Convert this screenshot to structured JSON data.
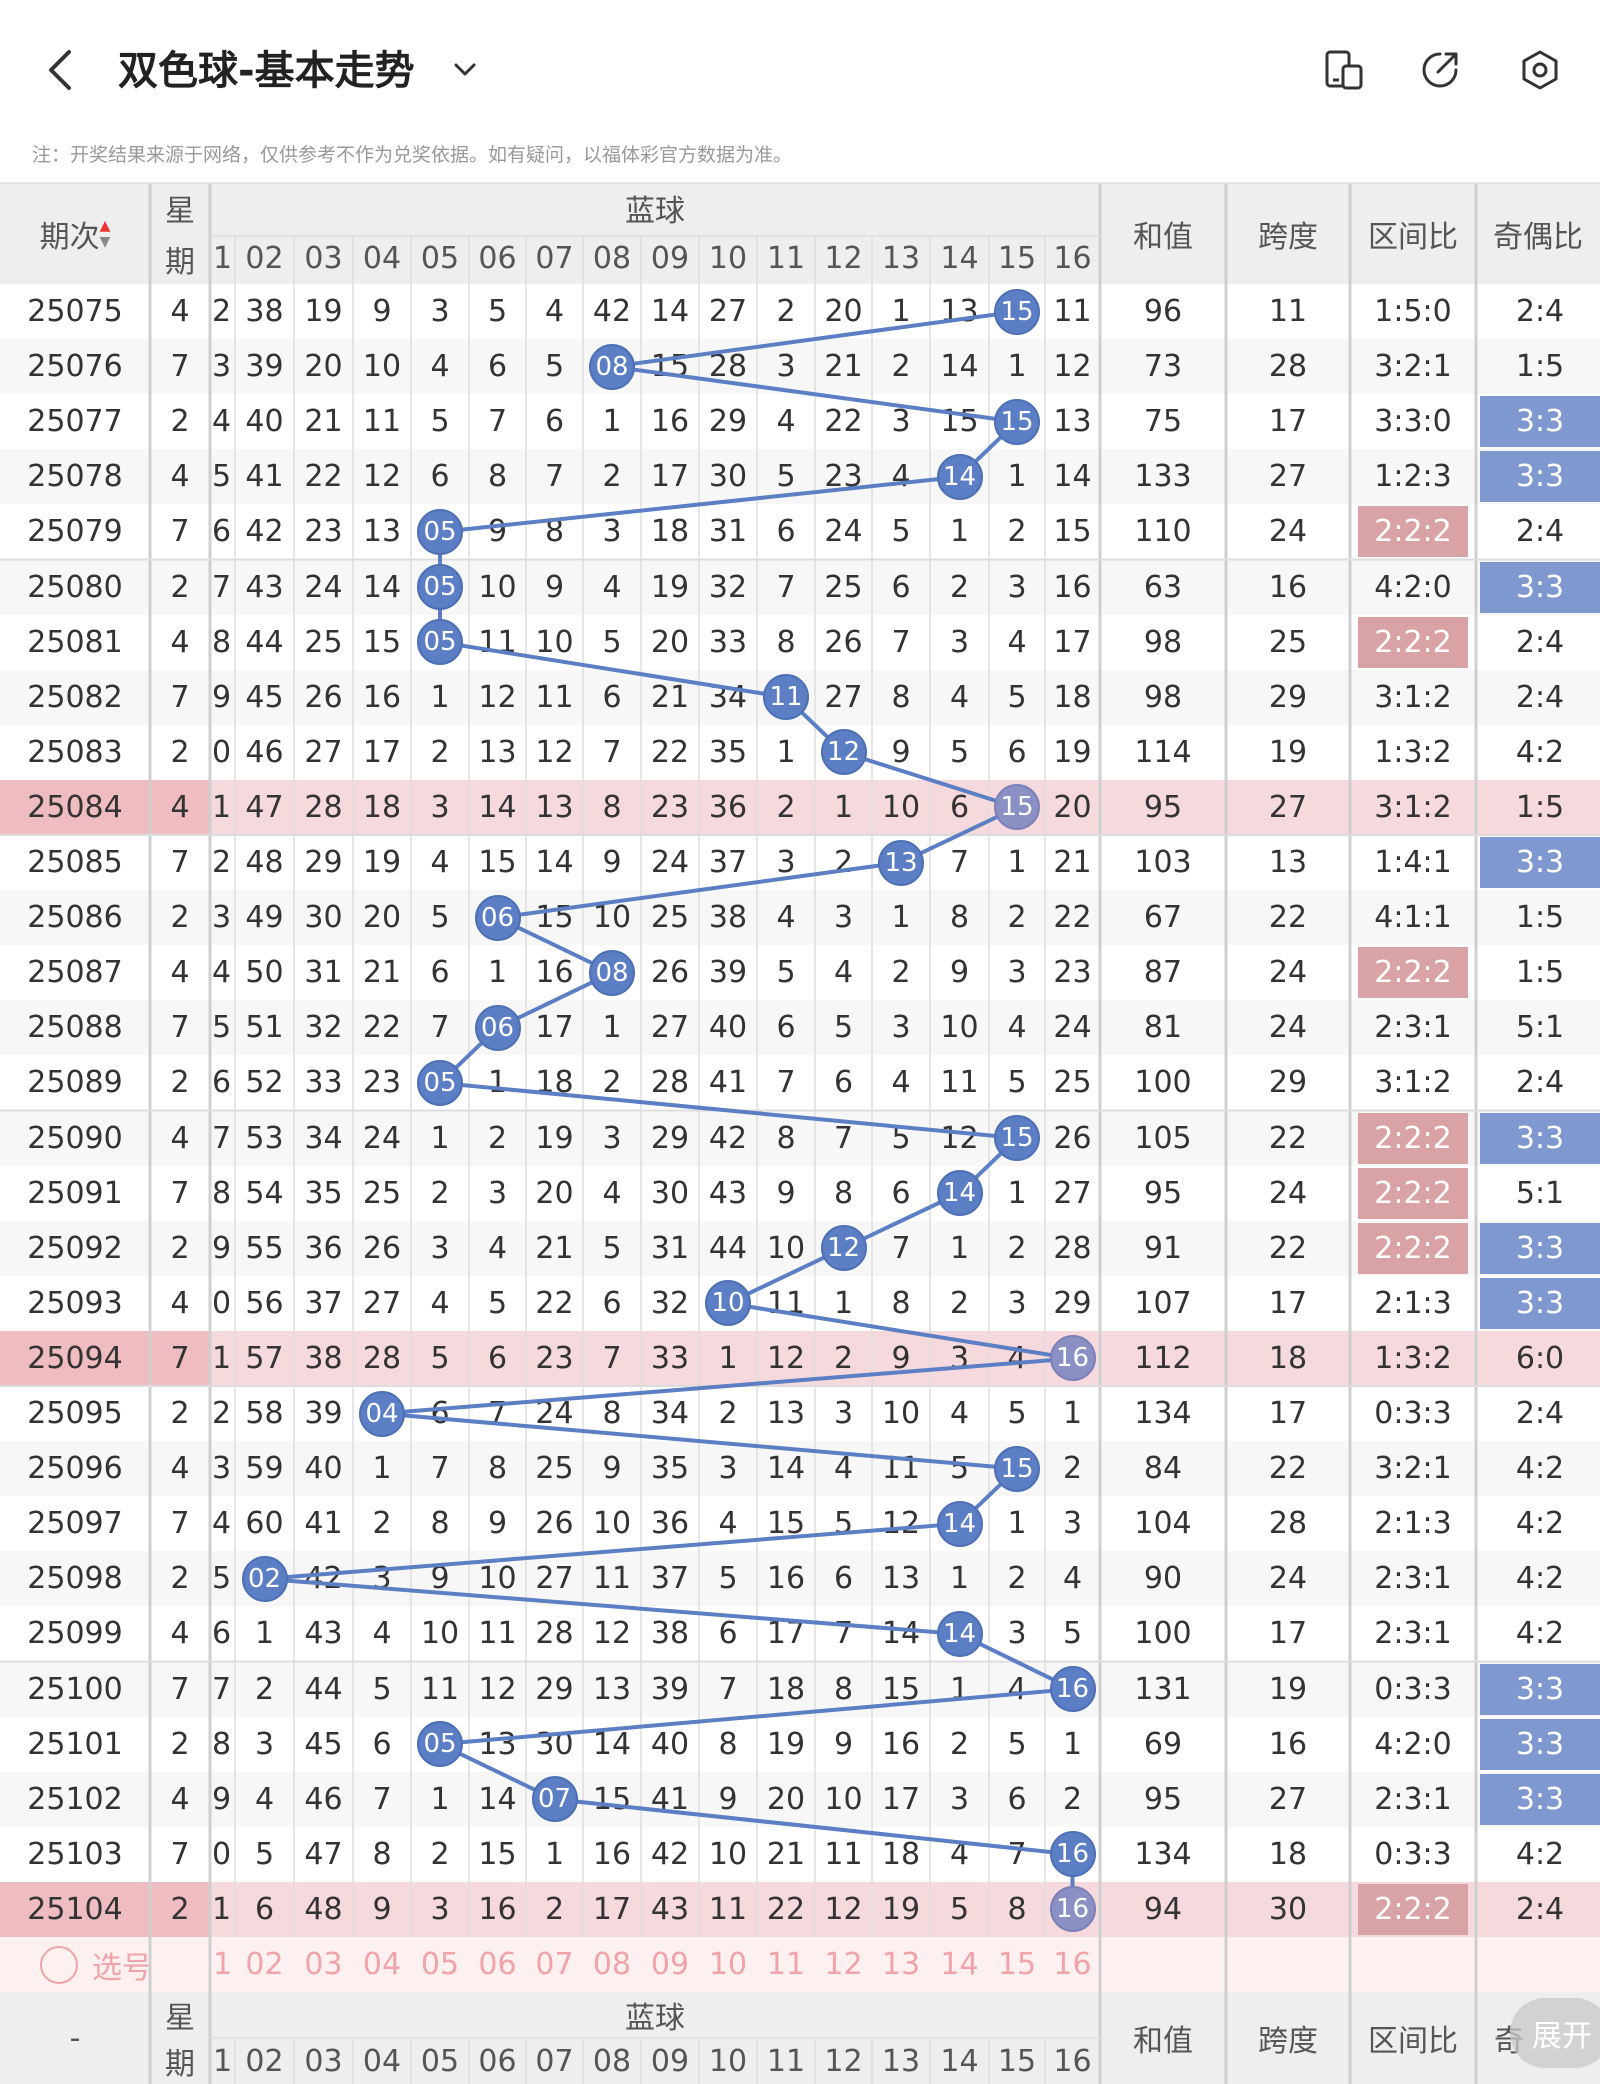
{
  "header": {
    "back_icon": "chevron-left-icon",
    "title": "双色球-基本走势",
    "title_dropdown_icon": "chevron-down-icon",
    "action_icons": [
      "mobile-layout-icon",
      "share-icon",
      "settings-icon"
    ]
  },
  "notice": "注：开奖结果来源于网络，仅供参考不作为兑奖依据。如有疑问，以福体彩官方数据为准。",
  "table": {
    "headers": {
      "period": "期次",
      "weekday_top": "星",
      "weekday_bottom": "期",
      "blue_ball": "蓝球",
      "sum": "和值",
      "span": "跨度",
      "zone_ratio": "区间比",
      "odd_even_ratio": "奇偶比"
    },
    "blue_columns": [
      "1",
      "02",
      "03",
      "04",
      "05",
      "06",
      "07",
      "08",
      "09",
      "10",
      "11",
      "12",
      "13",
      "14",
      "15",
      "16"
    ],
    "rows": [
      {
        "period": "25075",
        "weekday": "4",
        "blue": 15,
        "sum": "96",
        "span": "11",
        "zone": "1:5:0",
        "oe": "2:4",
        "cells": [
          "2",
          "38",
          "19",
          "9",
          "3",
          "5",
          "4",
          "42",
          "14",
          "27",
          "2",
          "20",
          "1",
          "13",
          "15",
          "11"
        ]
      },
      {
        "period": "25076",
        "weekday": "7",
        "blue": 8,
        "sum": "73",
        "span": "28",
        "zone": "3:2:1",
        "oe": "1:5",
        "cells": [
          "3",
          "39",
          "20",
          "10",
          "4",
          "6",
          "5",
          "08",
          "15",
          "28",
          "3",
          "21",
          "2",
          "14",
          "1",
          "12"
        ]
      },
      {
        "period": "25077",
        "weekday": "2",
        "blue": 15,
        "sum": "75",
        "span": "17",
        "zone": "3:3:0",
        "oe": "3:3",
        "oe_hl": true,
        "cells": [
          "4",
          "40",
          "21",
          "11",
          "5",
          "7",
          "6",
          "1",
          "16",
          "29",
          "4",
          "22",
          "3",
          "15",
          "15",
          "13"
        ]
      },
      {
        "period": "25078",
        "weekday": "4",
        "blue": 14,
        "sum": "133",
        "span": "27",
        "zone": "1:2:3",
        "oe": "3:3",
        "oe_hl": true,
        "cells": [
          "5",
          "41",
          "22",
          "12",
          "6",
          "8",
          "7",
          "2",
          "17",
          "30",
          "5",
          "23",
          "4",
          "14",
          "1",
          "14"
        ]
      },
      {
        "period": "25079",
        "weekday": "7",
        "blue": 5,
        "sum": "110",
        "span": "24",
        "zone": "2:2:2",
        "zone_hl": true,
        "oe": "2:4",
        "cells": [
          "6",
          "42",
          "23",
          "13",
          "05",
          "9",
          "8",
          "3",
          "18",
          "31",
          "6",
          "24",
          "5",
          "1",
          "2",
          "15"
        ]
      },
      {
        "period": "25080",
        "weekday": "2",
        "blue": 5,
        "sum": "63",
        "span": "16",
        "zone": "4:2:0",
        "oe": "3:3",
        "oe_hl": true,
        "cells": [
          "7",
          "43",
          "24",
          "14",
          "05",
          "10",
          "9",
          "4",
          "19",
          "32",
          "7",
          "25",
          "6",
          "2",
          "3",
          "16"
        ]
      },
      {
        "period": "25081",
        "weekday": "4",
        "blue": 5,
        "sum": "98",
        "span": "25",
        "zone": "2:2:2",
        "zone_hl": true,
        "oe": "2:4",
        "cells": [
          "8",
          "44",
          "25",
          "15",
          "05",
          "11",
          "10",
          "5",
          "20",
          "33",
          "8",
          "26",
          "7",
          "3",
          "4",
          "17"
        ]
      },
      {
        "period": "25082",
        "weekday": "7",
        "blue": 11,
        "sum": "98",
        "span": "29",
        "zone": "3:1:2",
        "oe": "2:4",
        "cells": [
          "9",
          "45",
          "26",
          "16",
          "1",
          "12",
          "11",
          "6",
          "21",
          "34",
          "11",
          "27",
          "8",
          "4",
          "5",
          "18"
        ]
      },
      {
        "period": "25083",
        "weekday": "2",
        "blue": 12,
        "sum": "114",
        "span": "19",
        "zone": "1:3:2",
        "oe": "4:2",
        "cells": [
          "0",
          "46",
          "27",
          "17",
          "2",
          "13",
          "12",
          "7",
          "22",
          "35",
          "1",
          "12",
          "9",
          "5",
          "6",
          "19"
        ]
      },
      {
        "period": "25084",
        "weekday": "4",
        "blue": 15,
        "sum": "95",
        "span": "27",
        "zone": "3:1:2",
        "oe": "1:5",
        "row_hl": true,
        "cells": [
          "1",
          "47",
          "28",
          "18",
          "3",
          "14",
          "13",
          "8",
          "23",
          "36",
          "2",
          "1",
          "10",
          "6",
          "15",
          "20"
        ]
      },
      {
        "period": "25085",
        "weekday": "7",
        "blue": 13,
        "sum": "103",
        "span": "13",
        "zone": "1:4:1",
        "oe": "3:3",
        "oe_hl": true,
        "cells": [
          "2",
          "48",
          "29",
          "19",
          "4",
          "15",
          "14",
          "9",
          "24",
          "37",
          "3",
          "2",
          "13",
          "7",
          "1",
          "21"
        ]
      },
      {
        "period": "25086",
        "weekday": "2",
        "blue": 6,
        "sum": "67",
        "span": "22",
        "zone": "4:1:1",
        "oe": "1:5",
        "cells": [
          "3",
          "49",
          "30",
          "20",
          "5",
          "06",
          "15",
          "10",
          "25",
          "38",
          "4",
          "3",
          "1",
          "8",
          "2",
          "22"
        ]
      },
      {
        "period": "25087",
        "weekday": "4",
        "blue": 8,
        "sum": "87",
        "span": "24",
        "zone": "2:2:2",
        "zone_hl": true,
        "oe": "1:5",
        "cells": [
          "4",
          "50",
          "31",
          "21",
          "6",
          "1",
          "16",
          "08",
          "26",
          "39",
          "5",
          "4",
          "2",
          "9",
          "3",
          "23"
        ]
      },
      {
        "period": "25088",
        "weekday": "7",
        "blue": 6,
        "sum": "81",
        "span": "24",
        "zone": "2:3:1",
        "oe": "5:1",
        "cells": [
          "5",
          "51",
          "32",
          "22",
          "7",
          "06",
          "17",
          "1",
          "27",
          "40",
          "6",
          "5",
          "3",
          "10",
          "4",
          "24"
        ]
      },
      {
        "period": "25089",
        "weekday": "2",
        "blue": 5,
        "sum": "100",
        "span": "29",
        "zone": "3:1:2",
        "oe": "2:4",
        "cells": [
          "6",
          "52",
          "33",
          "23",
          "05",
          "1",
          "18",
          "2",
          "28",
          "41",
          "7",
          "6",
          "4",
          "11",
          "5",
          "25"
        ]
      },
      {
        "period": "25090",
        "weekday": "4",
        "blue": 15,
        "sum": "105",
        "span": "22",
        "zone": "2:2:2",
        "zone_hl": true,
        "oe": "3:3",
        "oe_hl": true,
        "cells": [
          "7",
          "53",
          "34",
          "24",
          "1",
          "2",
          "19",
          "3",
          "29",
          "42",
          "8",
          "7",
          "5",
          "12",
          "15",
          "26"
        ]
      },
      {
        "period": "25091",
        "weekday": "7",
        "blue": 14,
        "sum": "95",
        "span": "24",
        "zone": "2:2:2",
        "zone_hl": true,
        "oe": "5:1",
        "cells": [
          "8",
          "54",
          "35",
          "25",
          "2",
          "3",
          "20",
          "4",
          "30",
          "43",
          "9",
          "8",
          "6",
          "14",
          "1",
          "27"
        ]
      },
      {
        "period": "25092",
        "weekday": "2",
        "blue": 12,
        "sum": "91",
        "span": "22",
        "zone": "2:2:2",
        "zone_hl": true,
        "oe": "3:3",
        "oe_hl": true,
        "cells": [
          "9",
          "55",
          "36",
          "26",
          "3",
          "4",
          "21",
          "5",
          "31",
          "44",
          "10",
          "12",
          "7",
          "1",
          "2",
          "28"
        ]
      },
      {
        "period": "25093",
        "weekday": "4",
        "blue": 10,
        "sum": "107",
        "span": "17",
        "zone": "2:1:3",
        "oe": "3:3",
        "oe_hl": true,
        "cells": [
          "0",
          "56",
          "37",
          "27",
          "4",
          "5",
          "22",
          "6",
          "32",
          "10",
          "11",
          "1",
          "8",
          "2",
          "3",
          "29"
        ]
      },
      {
        "period": "25094",
        "weekday": "7",
        "blue": 16,
        "sum": "112",
        "span": "18",
        "zone": "1:3:2",
        "oe": "6:0",
        "row_hl": true,
        "cells": [
          "1",
          "57",
          "38",
          "28",
          "5",
          "6",
          "23",
          "7",
          "33",
          "1",
          "12",
          "2",
          "9",
          "3",
          "4",
          "16"
        ]
      },
      {
        "period": "25095",
        "weekday": "2",
        "blue": 4,
        "sum": "134",
        "span": "17",
        "zone": "0:3:3",
        "oe": "2:4",
        "cells": [
          "2",
          "58",
          "39",
          "04",
          "6",
          "7",
          "24",
          "8",
          "34",
          "2",
          "13",
          "3",
          "10",
          "4",
          "5",
          "1"
        ]
      },
      {
        "period": "25096",
        "weekday": "4",
        "blue": 15,
        "sum": "84",
        "span": "22",
        "zone": "3:2:1",
        "oe": "4:2",
        "cells": [
          "3",
          "59",
          "40",
          "1",
          "7",
          "8",
          "25",
          "9",
          "35",
          "3",
          "14",
          "4",
          "11",
          "5",
          "15",
          "2"
        ]
      },
      {
        "period": "25097",
        "weekday": "7",
        "blue": 14,
        "sum": "104",
        "span": "28",
        "zone": "2:1:3",
        "oe": "4:2",
        "cells": [
          "4",
          "60",
          "41",
          "2",
          "8",
          "9",
          "26",
          "10",
          "36",
          "4",
          "15",
          "5",
          "12",
          "14",
          "1",
          "3"
        ]
      },
      {
        "period": "25098",
        "weekday": "2",
        "blue": 2,
        "sum": "90",
        "span": "24",
        "zone": "2:3:1",
        "oe": "4:2",
        "cells": [
          "5",
          "02",
          "42",
          "3",
          "9",
          "10",
          "27",
          "11",
          "37",
          "5",
          "16",
          "6",
          "13",
          "1",
          "2",
          "4"
        ]
      },
      {
        "period": "25099",
        "weekday": "4",
        "blue": 14,
        "sum": "100",
        "span": "17",
        "zone": "2:3:1",
        "oe": "4:2",
        "cells": [
          "6",
          "1",
          "43",
          "4",
          "10",
          "11",
          "28",
          "12",
          "38",
          "6",
          "17",
          "7",
          "14",
          "14",
          "3",
          "5"
        ]
      },
      {
        "period": "25100",
        "weekday": "7",
        "blue": 16,
        "sum": "131",
        "span": "19",
        "zone": "0:3:3",
        "oe": "3:3",
        "oe_hl": true,
        "cells": [
          "7",
          "2",
          "44",
          "5",
          "11",
          "12",
          "29",
          "13",
          "39",
          "7",
          "18",
          "8",
          "15",
          "1",
          "4",
          "16"
        ]
      },
      {
        "period": "25101",
        "weekday": "2",
        "blue": 5,
        "sum": "69",
        "span": "16",
        "zone": "4:2:0",
        "oe": "3:3",
        "oe_hl": true,
        "cells": [
          "8",
          "3",
          "45",
          "6",
          "05",
          "13",
          "30",
          "14",
          "40",
          "8",
          "19",
          "9",
          "16",
          "2",
          "5",
          "1"
        ]
      },
      {
        "period": "25102",
        "weekday": "4",
        "blue": 7,
        "sum": "95",
        "span": "27",
        "zone": "2:3:1",
        "oe": "3:3",
        "oe_hl": true,
        "cells": [
          "9",
          "4",
          "46",
          "7",
          "1",
          "14",
          "07",
          "15",
          "41",
          "9",
          "20",
          "10",
          "17",
          "3",
          "6",
          "2"
        ]
      },
      {
        "period": "25103",
        "weekday": "7",
        "blue": 16,
        "sum": "134",
        "span": "18",
        "zone": "0:3:3",
        "oe": "4:2",
        "cells": [
          "0",
          "5",
          "47",
          "8",
          "2",
          "15",
          "1",
          "16",
          "42",
          "10",
          "21",
          "11",
          "18",
          "4",
          "7",
          "16"
        ]
      },
      {
        "period": "25104",
        "weekday": "2",
        "blue": 16,
        "sum": "94",
        "span": "30",
        "zone": "2:2:2",
        "zone_hl": true,
        "oe": "2:4",
        "row_hl": true,
        "cells": [
          "1",
          "6",
          "48",
          "9",
          "3",
          "16",
          "2",
          "17",
          "43",
          "11",
          "22",
          "12",
          "19",
          "5",
          "8",
          "16"
        ]
      }
    ],
    "select_row": {
      "icon": "circle-icon",
      "label": "选号"
    },
    "footer": {
      "period": "-",
      "weekday_top": "星",
      "weekday_bottom": "期",
      "blue_ball": "蓝球",
      "sum": "和值",
      "span": "跨度",
      "zone_ratio": "区间比",
      "odd_even_short": "奇"
    }
  },
  "fab_label": "展开",
  "colors": {
    "accent_blue": "#5b7ec4",
    "highlight_blue": "#7f98cf",
    "highlight_red": "#d9a3a6",
    "row_pink": "#f6d9dc",
    "header_gray": "#eeeeee",
    "select_text": "#f0a3a8"
  }
}
